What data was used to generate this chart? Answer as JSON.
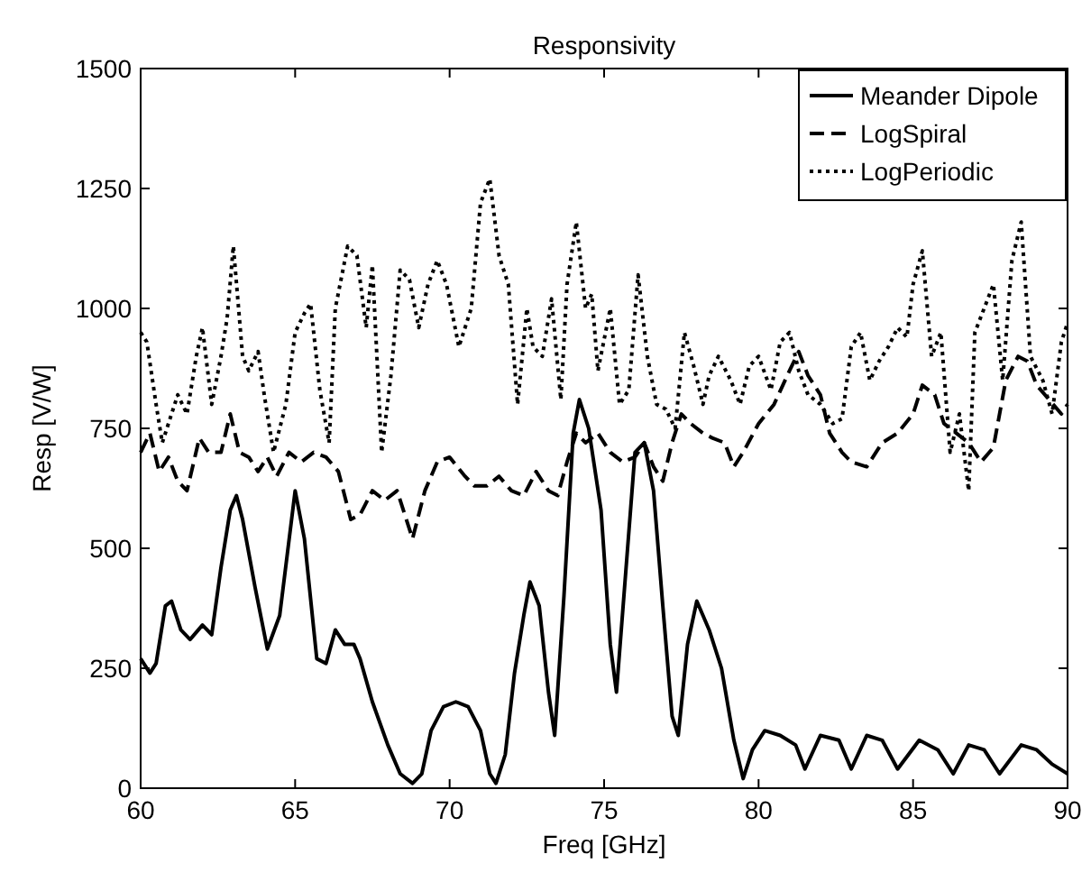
{
  "chart_data": {
    "type": "line",
    "title": "Responsivity",
    "xlabel": "Freq [GHz]",
    "ylabel": "Resp [V/W]",
    "xlim": [
      60,
      90
    ],
    "ylim": [
      0,
      1500
    ],
    "xticks": [
      60,
      65,
      70,
      75,
      80,
      85,
      90
    ],
    "yticks": [
      0,
      250,
      500,
      750,
      1000,
      1250,
      1500
    ],
    "legend": "top right",
    "grid": false,
    "marker": "none",
    "series": [
      {
        "name": "Meander Dipole",
        "color": "#000000",
        "line_style": "solid",
        "x": [
          60,
          60.3,
          60.5,
          60.8,
          61,
          61.3,
          61.6,
          62,
          62.3,
          62.6,
          62.9,
          63.1,
          63.3,
          63.7,
          64.1,
          64.5,
          65,
          65.3,
          65.7,
          66,
          66.3,
          66.6,
          66.9,
          67.1,
          67.5,
          68,
          68.4,
          68.8,
          69.1,
          69.4,
          69.8,
          70.2,
          70.6,
          71,
          71.3,
          71.5,
          71.8,
          72.1,
          72.4,
          72.6,
          72.9,
          73.2,
          73.4,
          73.7,
          74,
          74.2,
          74.5,
          74.9,
          75.2,
          75.4,
          75.7,
          76,
          76.3,
          76.6,
          76.9,
          77.2,
          77.4,
          77.7,
          78,
          78.4,
          78.8,
          79.2,
          79.5,
          79.8,
          80.2,
          80.7,
          81.2,
          81.5,
          82,
          82.6,
          83,
          83.5,
          84,
          84.5,
          85.2,
          85.8,
          86.3,
          86.8,
          87.3,
          87.8,
          88.5,
          89,
          89.5,
          90
        ],
        "values": [
          270,
          240,
          260,
          380,
          390,
          330,
          310,
          340,
          320,
          460,
          580,
          610,
          560,
          420,
          290,
          360,
          620,
          520,
          270,
          260,
          330,
          300,
          300,
          270,
          180,
          90,
          30,
          10,
          30,
          120,
          170,
          180,
          170,
          120,
          30,
          10,
          70,
          240,
          360,
          430,
          380,
          200,
          110,
          400,
          740,
          810,
          750,
          580,
          300,
          200,
          450,
          700,
          720,
          620,
          380,
          150,
          110,
          300,
          390,
          330,
          250,
          100,
          20,
          80,
          120,
          110,
          90,
          40,
          110,
          100,
          40,
          110,
          100,
          40,
          100,
          80,
          30,
          90,
          80,
          30,
          90,
          80,
          50,
          30
        ]
      },
      {
        "name": "LogSpiral",
        "color": "#000000",
        "line_style": "dashed",
        "x": [
          60,
          60.3,
          60.6,
          60.9,
          61.2,
          61.5,
          61.9,
          62.2,
          62.6,
          62.9,
          63.2,
          63.5,
          63.8,
          64.1,
          64.4,
          64.8,
          65.2,
          65.6,
          66,
          66.4,
          66.8,
          67.1,
          67.5,
          67.9,
          68.3,
          68.8,
          69.2,
          69.6,
          70,
          70.5,
          70.8,
          71.2,
          71.6,
          72,
          72.4,
          72.8,
          73.2,
          73.5,
          73.8,
          74.1,
          74.4,
          74.8,
          75.2,
          75.6,
          76,
          76.3,
          76.6,
          76.9,
          77.2,
          77.5,
          77.8,
          78.2,
          78.5,
          78.9,
          79.2,
          79.5,
          80,
          80.5,
          81,
          81.3,
          81.6,
          82,
          82.3,
          82.7,
          83,
          83.5,
          84,
          84.5,
          85,
          85.3,
          85.7,
          86,
          86.4,
          86.8,
          87.2,
          87.6,
          88,
          88.4,
          88.7,
          89,
          89.4,
          89.8,
          90
        ],
        "values": [
          700,
          740,
          660,
          690,
          640,
          620,
          730,
          700,
          700,
          780,
          700,
          690,
          660,
          690,
          650,
          700,
          680,
          700,
          690,
          660,
          560,
          570,
          620,
          600,
          620,
          520,
          620,
          680,
          690,
          650,
          630,
          630,
          650,
          620,
          610,
          660,
          620,
          610,
          680,
          740,
          720,
          740,
          700,
          680,
          690,
          720,
          670,
          640,
          720,
          780,
          760,
          740,
          730,
          720,
          670,
          700,
          760,
          800,
          870,
          910,
          860,
          820,
          740,
          700,
          680,
          670,
          720,
          740,
          780,
          840,
          820,
          760,
          740,
          720,
          680,
          710,
          850,
          900,
          890,
          840,
          810,
          780,
          800
        ]
      },
      {
        "name": "LogPeriodic",
        "color": "#000000",
        "line_style": "dotted",
        "x": [
          60,
          60.2,
          60.5,
          60.7,
          61,
          61.2,
          61.5,
          61.8,
          62,
          62.3,
          62.6,
          62.8,
          63,
          63.3,
          63.5,
          63.8,
          64,
          64.3,
          64.7,
          65,
          65.3,
          65.5,
          65.8,
          66.1,
          66.3,
          66.7,
          67,
          67.3,
          67.5,
          67.8,
          68.1,
          68.4,
          68.7,
          69,
          69.3,
          69.6,
          69.9,
          70.3,
          70.7,
          71,
          71.3,
          71.6,
          71.9,
          72.2,
          72.5,
          72.7,
          73,
          73.3,
          73.6,
          73.8,
          74.1,
          74.4,
          74.6,
          74.8,
          75.2,
          75.5,
          75.8,
          76.1,
          76.4,
          76.7,
          77,
          77.3,
          77.6,
          77.9,
          78.2,
          78.4,
          78.7,
          79.1,
          79.4,
          79.7,
          80,
          80.4,
          80.7,
          81,
          81.3,
          81.6,
          82,
          82.4,
          82.7,
          83,
          83.3,
          83.6,
          83.9,
          84.2,
          84.5,
          84.8,
          85,
          85.3,
          85.6,
          85.9,
          86.2,
          86.5,
          86.8,
          87,
          87.3,
          87.6,
          87.9,
          88.2,
          88.5,
          88.8,
          89.2,
          89.5,
          89.8,
          90
        ],
        "values": [
          950,
          930,
          800,
          720,
          780,
          820,
          780,
          900,
          960,
          800,
          900,
          980,
          1130,
          900,
          870,
          910,
          820,
          700,
          800,
          950,
          990,
          1010,
          830,
          720,
          1000,
          1130,
          1110,
          960,
          1090,
          700,
          860,
          1080,
          1060,
          960,
          1050,
          1100,
          1050,
          920,
          1000,
          1220,
          1270,
          1110,
          1050,
          800,
          1000,
          920,
          900,
          1020,
          810,
          1050,
          1180,
          1000,
          1030,
          870,
          1000,
          800,
          830,
          1070,
          900,
          800,
          790,
          750,
          950,
          880,
          800,
          860,
          900,
          850,
          800,
          880,
          900,
          830,
          930,
          950,
          870,
          820,
          800,
          760,
          770,
          920,
          950,
          850,
          890,
          920,
          960,
          940,
          1050,
          1120,
          900,
          950,
          700,
          780,
          620,
          950,
          1000,
          1050,
          850,
          1100,
          1180,
          900,
          850,
          780,
          930,
          970
        ]
      }
    ]
  }
}
